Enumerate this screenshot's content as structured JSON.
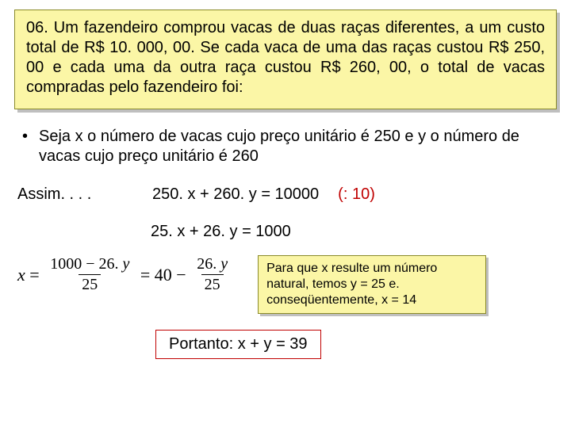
{
  "colors": {
    "problem_bg": "#fbf6a6",
    "problem_border": "#8a8a2a",
    "box_shadow": "#bfbfbf",
    "body_text": "#000000",
    "hint_color": "#c00000",
    "answer_border": "#c00000",
    "background": "#ffffff"
  },
  "problem": {
    "text": "06. Um fazendeiro comprou vacas de duas raças diferentes, a um custo total de R$ 10. 000, 00. Se cada vaca de uma das raças custou R$ 250, 00 e cada uma da outra raça custou R$ 260, 00, o total de vacas compradas pelo fazendeiro foi:"
  },
  "bullet": {
    "text": "Seja x o número de vacas cujo preço unitário é 250 e y o número de vacas cujo preço unitário é 260"
  },
  "assim": {
    "label": "Assim. . . .",
    "equation1": "250. x + 260. y = 10000",
    "hint": "(: 10)"
  },
  "equation2": "25. x + 26. y = 1000",
  "formula": {
    "lhs_var": "x",
    "frac1_num": "1000 − 26. y",
    "frac1_den": "25",
    "mid": "40",
    "frac2_num": "26. y",
    "frac2_den": "25"
  },
  "note": {
    "text": "Para que x resulte um número natural, temos y = 25 e. conseqüentemente, x = 14"
  },
  "answer": {
    "text": "Portanto: x + y = 39"
  }
}
